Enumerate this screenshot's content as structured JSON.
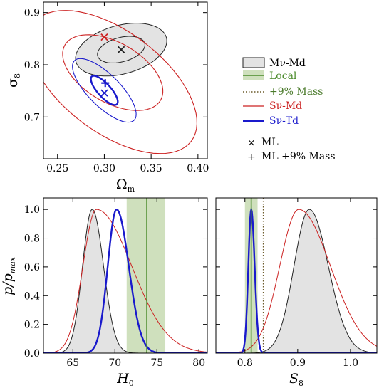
{
  "colors": {
    "mv_md_fill": "#e3e3e3",
    "mv_md_line": "#222222",
    "local": "#4a8a2a",
    "local_band": "#cfe0bd",
    "sv_md": "#cc2222",
    "sv_td": "#1a1acc",
    "mass9": "#6b5a2a"
  },
  "legend": {
    "items": [
      {
        "key": "mv_md",
        "label": "Mν-Md",
        "color": "#000000"
      },
      {
        "key": "local",
        "label": "Local",
        "color": "#4a8a2a"
      },
      {
        "key": "mass9",
        "label": "+9% Mass",
        "color": "#4a7a2a"
      },
      {
        "key": "sv_md",
        "label": "Sν-Md",
        "color": "#cc2222"
      },
      {
        "key": "sv_td",
        "label": "Sν-Td",
        "color": "#1a1acc"
      }
    ],
    "markers": [
      {
        "symbol": "×",
        "label": "ML"
      },
      {
        "symbol": "+",
        "label": "ML +9% Mass"
      }
    ]
  },
  "chart_data": [
    {
      "type": "contour",
      "panel": "omega-sigma8",
      "xlabel": "Ω",
      "xlabel_sub": "m",
      "ylabel": "σ",
      "ylabel_sub": "8",
      "xlim": [
        0.235,
        0.41
      ],
      "ylim": [
        0.62,
        0.92
      ],
      "xticks": [
        0.25,
        0.3,
        0.35,
        0.4
      ],
      "xtick_labels": [
        "0.25",
        "0.30",
        "0.35",
        "0.40"
      ],
      "yticks": [
        0.7,
        0.8,
        0.9
      ],
      "ytick_labels": [
        "0.7",
        "0.8",
        "0.9"
      ],
      "series": [
        {
          "key": "mv_md",
          "ellipses": [
            {
              "cx": 0.318,
              "cy": 0.829,
              "a": 0.026,
              "b": 0.013,
              "angle": 15,
              "filled": true
            },
            {
              "cx": 0.318,
              "cy": 0.829,
              "a": 0.05,
              "b": 0.026,
              "angle": 15,
              "filled": true
            }
          ],
          "ml": [
            0.318,
            0.829
          ]
        },
        {
          "key": "sv_md",
          "ellipses": [
            {
              "cx": 0.309,
              "cy": 0.785,
              "a": 0.059,
              "b": 0.032,
              "angle": -30,
              "filled": false
            },
            {
              "cx": 0.309,
              "cy": 0.767,
              "a": 0.105,
              "b": 0.054,
              "angle": -37,
              "filled": false
            }
          ],
          "ml": [
            0.3,
            0.853
          ]
        },
        {
          "key": "sv_td",
          "ellipses": [
            {
              "cx": 0.3,
              "cy": 0.751,
              "a": 0.02,
              "b": 0.007,
              "angle": -48,
              "filled": false
            },
            {
              "cx": 0.3,
              "cy": 0.751,
              "a": 0.045,
              "b": 0.017,
              "angle": -45,
              "filled": false
            }
          ],
          "ml": [
            0.3,
            0.746
          ],
          "ml_mass9": [
            0.301,
            0.765
          ]
        }
      ]
    },
    {
      "type": "line",
      "panel": "h0",
      "xlabel": "H",
      "xlabel_sub": "0",
      "ylabel": "p/p",
      "ylabel_sub": "max",
      "xlim": [
        61.5,
        81
      ],
      "ylim": [
        0,
        1.08
      ],
      "xticks": [
        65,
        70,
        75,
        80
      ],
      "xtick_labels": [
        "65",
        "70",
        "75",
        "80"
      ],
      "yticks": [
        0.0,
        0.2,
        0.4,
        0.6,
        0.8,
        1.0
      ],
      "ytick_labels": [
        "0.0",
        "0.2",
        "0.4",
        "0.6",
        "0.8",
        "1.0"
      ],
      "local": {
        "value": 73.8,
        "band": [
          71.4,
          76.0
        ]
      },
      "series": [
        {
          "key": "mv_md",
          "kind": "skew-gauss",
          "mu": 67.3,
          "sig_left": 1.15,
          "sig_right": 1.35,
          "filled": true
        },
        {
          "key": "sv_md",
          "kind": "skew-gauss",
          "mu": 67.8,
          "sig_left": 1.6,
          "sig_right": 4.2,
          "filled": false
        },
        {
          "key": "sv_td",
          "kind": "skew-gauss",
          "mu": 70.2,
          "sig_left": 1.05,
          "sig_right": 1.45,
          "filled": false,
          "bold": true
        }
      ]
    },
    {
      "type": "line",
      "panel": "s8",
      "xlabel": "S",
      "xlabel_sub": "8",
      "xlim": [
        0.745,
        1.05
      ],
      "ylim": [
        0,
        1.08
      ],
      "xticks": [
        0.8,
        0.9,
        1.0
      ],
      "xtick_labels": [
        "0.8",
        "0.9",
        "1.0"
      ],
      "local": {
        "value": 0.812,
        "band": [
          0.8,
          0.824
        ]
      },
      "mass9": {
        "value": 0.835
      },
      "series": [
        {
          "key": "mv_md",
          "kind": "skew-gauss",
          "mu": 0.922,
          "sig_left": 0.029,
          "sig_right": 0.036,
          "filled": true
        },
        {
          "key": "sv_md",
          "kind": "skew-gauss",
          "mu": 0.902,
          "sig_left": 0.036,
          "sig_right": 0.06,
          "filled": false
        },
        {
          "key": "sv_td",
          "kind": "skew-gauss",
          "mu": 0.812,
          "sig_left": 0.0055,
          "sig_right": 0.0065,
          "filled": false,
          "bold": true
        }
      ]
    }
  ]
}
